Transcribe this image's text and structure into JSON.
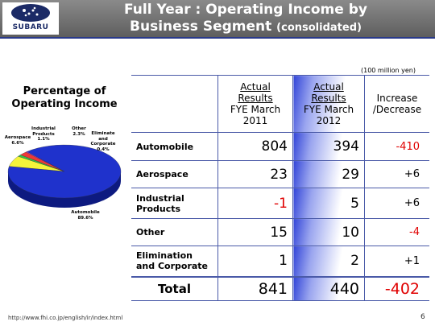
{
  "header": {
    "logo": "SUBARU",
    "title_line1": "Full Year : Operating Income by",
    "title_line2": "Business Segment",
    "title_note": "(consolidated)"
  },
  "unit_note": "(100 million yen)",
  "table": {
    "columns": [
      {
        "title": "Actual Results",
        "period": "FYE March 2011"
      },
      {
        "title": "Actual Results",
        "period": "FYE March 2012"
      },
      {
        "title": "",
        "period": "Increase /Decrease"
      }
    ],
    "rows": [
      [
        "Automobile",
        "804",
        "394",
        "-410"
      ],
      [
        "Aerospace",
        "23",
        "29",
        "+6"
      ],
      [
        "Industrial Products",
        "-1",
        "5",
        "+6"
      ],
      [
        "Other",
        "15",
        "10",
        "-4"
      ],
      [
        "Elimination and Corporate",
        "1",
        "2",
        "+1"
      ],
      [
        "Total",
        "841",
        "440",
        "-402"
      ]
    ]
  },
  "chart_data": {
    "type": "pie",
    "title": "Percentage of Operating Income",
    "categories": [
      "Aerospace",
      "Industrial Products",
      "Other",
      "Eliminate and Corporate",
      "Automobile"
    ],
    "values": [
      6.6,
      1.1,
      2.3,
      0.4,
      89.6
    ],
    "value_labels": [
      "6.6%",
      "1.1%",
      "2.3%",
      "0.4%",
      "89.6%"
    ],
    "colors": [
      "#f4f43a",
      "#33c24a",
      "#ef3838",
      "#9a3cf0",
      "#1f32cc"
    ]
  },
  "footer": {
    "url": "http://www.fhi.co.jp/english/ir/index.html",
    "page": "6"
  }
}
